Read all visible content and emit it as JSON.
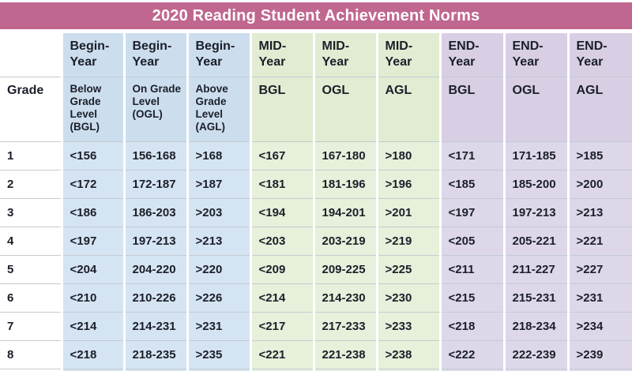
{
  "title": "2020 Reading Student Achievement Norms",
  "colors": {
    "title_bg": "#c0678f",
    "title_text": "#ffffff",
    "begin_header_bg": "#ccdeee",
    "begin_cell_bg": "#d5e4f2",
    "mid_header_bg": "#e1ecd2",
    "mid_cell_bg": "#e6f0da",
    "end_header_bg": "#d8cfe5",
    "end_cell_bg": "#ded7ea",
    "text": "#1b1f2a"
  },
  "chart_data": {
    "type": "table",
    "title": "2020 Reading Student Achievement Norms",
    "column_groups": [
      "grade",
      "begin",
      "begin",
      "begin",
      "mid",
      "mid",
      "mid",
      "end",
      "end",
      "end"
    ],
    "header_row_year": [
      "",
      "Begin-\nYear",
      "Begin-\nYear",
      "Begin-\nYear",
      "MID-\nYear",
      "MID-\nYear",
      "MID-\nYear",
      "END-\nYear",
      "END-\nYear",
      "END-\nYear"
    ],
    "header_row_level": [
      "Grade",
      "Below\nGrade\nLevel\n(BGL)",
      "On Grade\nLevel\n(OGL)",
      "Above\nGrade\nLevel\n(AGL)",
      "BGL",
      "OGL",
      "AGL",
      "BGL",
      "OGL",
      "AGL"
    ],
    "rows": [
      [
        "1",
        "<156",
        "156-168",
        ">168",
        "<167",
        "167-180",
        ">180",
        "<171",
        "171-185",
        ">185"
      ],
      [
        "2",
        "<172",
        "172-187",
        ">187",
        "<181",
        "181-196",
        ">196",
        "<185",
        "185-200",
        ">200"
      ],
      [
        "3",
        "<186",
        "186-203",
        ">203",
        "<194",
        "194-201",
        ">201",
        "<197",
        "197-213",
        ">213"
      ],
      [
        "4",
        "<197",
        "197-213",
        ">213",
        "<203",
        "203-219",
        ">219",
        "<205",
        "205-221",
        ">221"
      ],
      [
        "5",
        "<204",
        "204-220",
        ">220",
        "<209",
        "209-225",
        ">225",
        "<211",
        "211-227",
        ">227"
      ],
      [
        "6",
        "<210",
        "210-226",
        ">226",
        "<214",
        "214-230",
        ">230",
        "<215",
        "215-231",
        ">231"
      ],
      [
        "7",
        "<214",
        "214-231",
        ">231",
        "<217",
        "217-233",
        ">233",
        "<218",
        "218-234",
        ">234"
      ],
      [
        "8",
        "<218",
        "218-235",
        ">235",
        "<221",
        "221-238",
        ">238",
        "<222",
        "222-239",
        ">239"
      ]
    ],
    "partial_next_row_visible": true
  }
}
